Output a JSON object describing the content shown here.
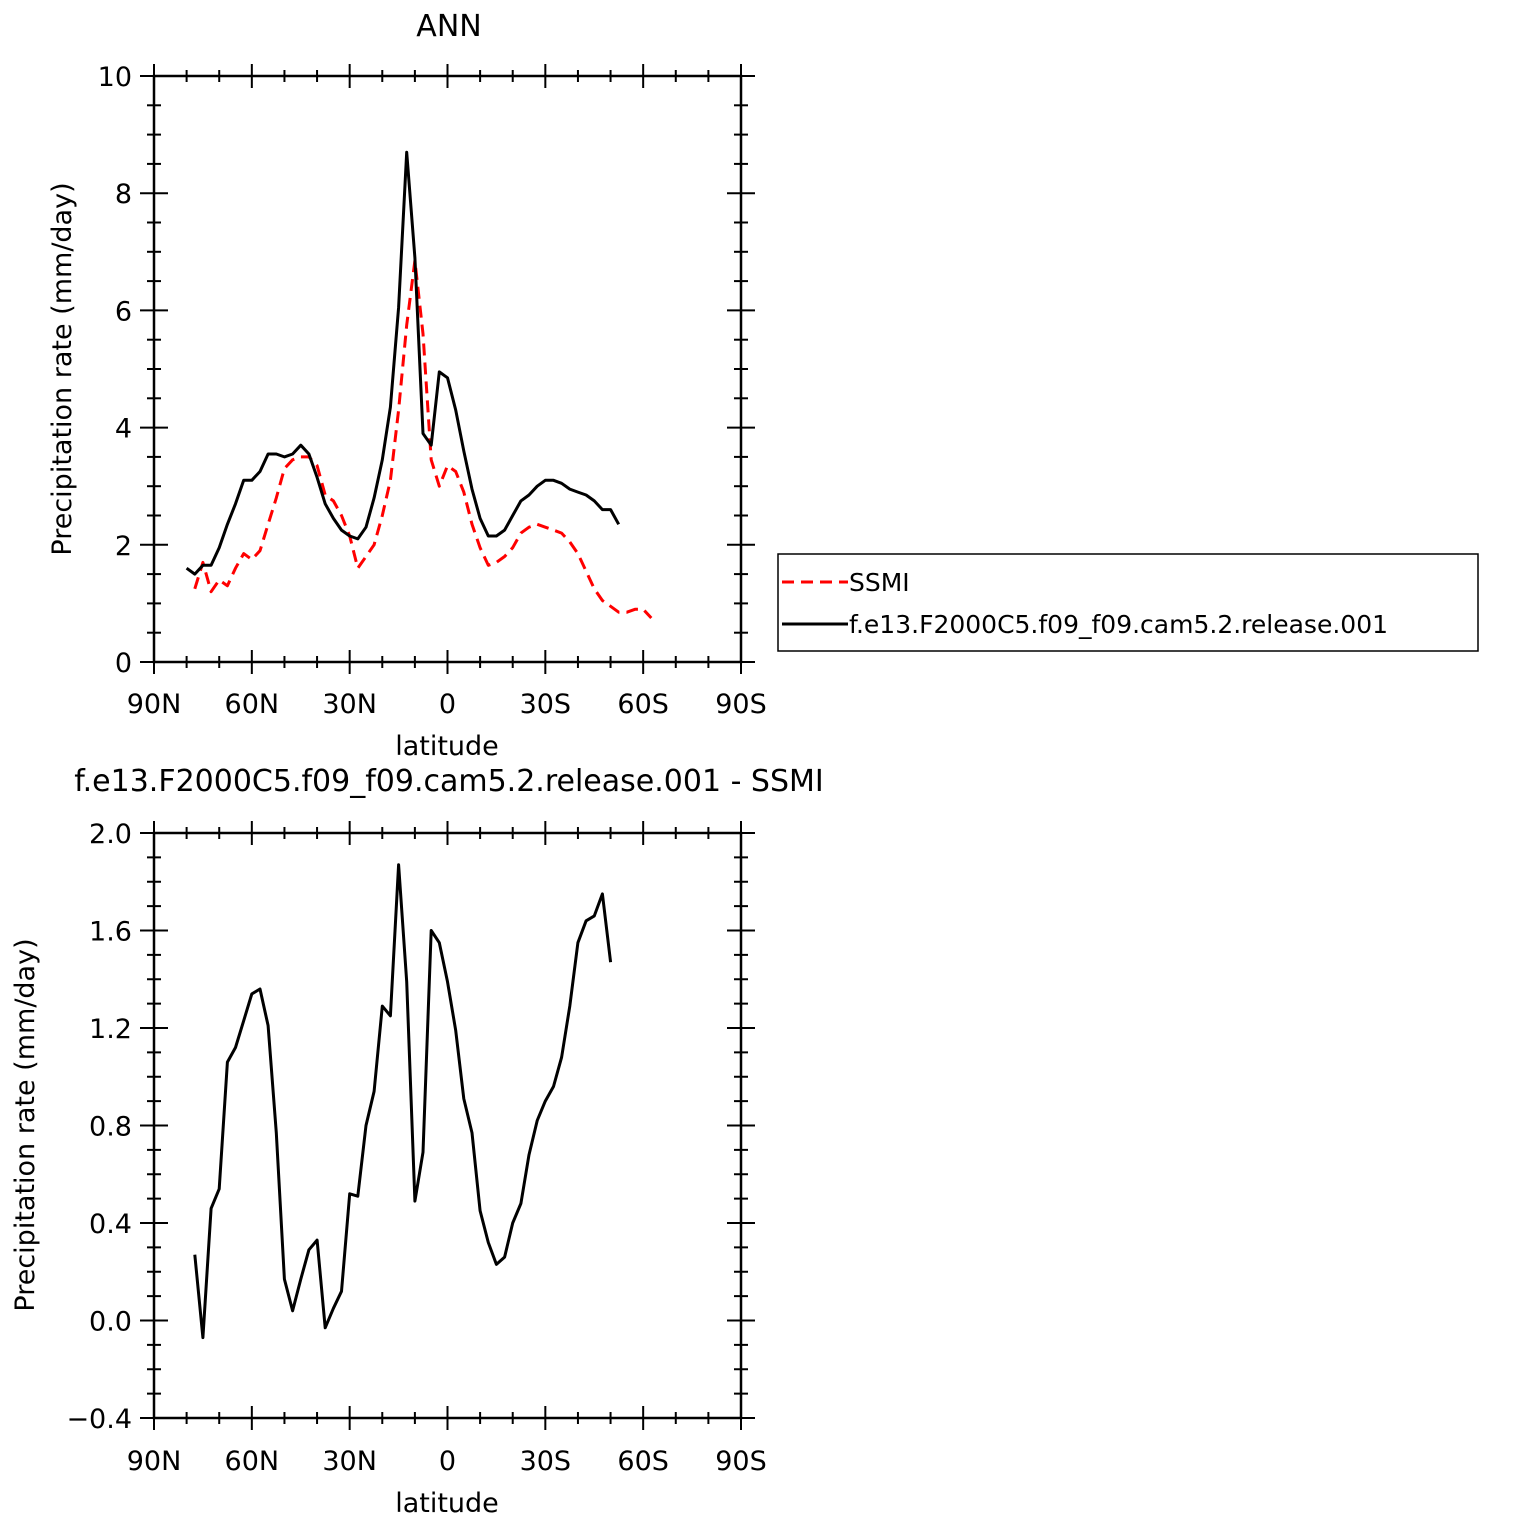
{
  "chart_data": [
    {
      "type": "line",
      "title": "ANN",
      "xlabel": "latitude",
      "ylabel": "Precipitation rate (mm/day)",
      "xlim": [
        "90N",
        "90S"
      ],
      "ylim": [
        0,
        10
      ],
      "x_tick_labels": [
        "90N",
        "60N",
        "30N",
        "0",
        "30S",
        "60S",
        "90S"
      ],
      "y_tick_labels": [
        "0",
        "2",
        "4",
        "6",
        "8",
        "10"
      ],
      "legend": {
        "placement": "right",
        "entries": [
          "SSMI",
          "f.e13.F2000C5.f09_f09.cam5.2.release.001"
        ]
      },
      "series": [
        {
          "name": "SSMI",
          "color": "#ff0000",
          "style": "dashed",
          "points": [
            [
              77.5,
              1.25
            ],
            [
              75,
              1.7
            ],
            [
              72.5,
              1.2
            ],
            [
              70,
              1.4
            ],
            [
              67.5,
              1.3
            ],
            [
              65,
              1.6
            ],
            [
              62.5,
              1.85
            ],
            [
              60,
              1.75
            ],
            [
              57.5,
              1.9
            ],
            [
              55,
              2.35
            ],
            [
              52.5,
              2.8
            ],
            [
              50,
              3.3
            ],
            [
              47.5,
              3.45
            ],
            [
              45,
              3.5
            ],
            [
              42.5,
              3.5
            ],
            [
              40,
              3.35
            ],
            [
              37.5,
              2.85
            ],
            [
              35,
              2.75
            ],
            [
              32.5,
              2.5
            ],
            [
              30,
              2.15
            ],
            [
              27.5,
              1.6
            ],
            [
              25,
              1.8
            ],
            [
              22.5,
              2.0
            ],
            [
              20,
              2.5
            ],
            [
              17.5,
              3.1
            ],
            [
              15,
              4.3
            ],
            [
              12.5,
              5.75
            ],
            [
              10,
              6.85
            ],
            [
              7.5,
              5.6
            ],
            [
              5,
              3.45
            ],
            [
              2.5,
              3.0
            ],
            [
              0,
              3.35
            ],
            [
              -2.5,
              3.25
            ],
            [
              -5,
              2.9
            ],
            [
              -7.5,
              2.35
            ],
            [
              -10,
              1.95
            ],
            [
              -12.5,
              1.65
            ],
            [
              -15,
              1.7
            ],
            [
              -17.5,
              1.8
            ],
            [
              -20,
              1.95
            ],
            [
              -22.5,
              2.2
            ],
            [
              -25,
              2.3
            ],
            [
              -27.5,
              2.35
            ],
            [
              -30,
              2.3
            ],
            [
              -32.5,
              2.25
            ],
            [
              -35,
              2.2
            ],
            [
              -37.5,
              2.05
            ],
            [
              -40,
              1.85
            ],
            [
              -42.5,
              1.55
            ],
            [
              -45,
              1.25
            ],
            [
              -47.5,
              1.05
            ],
            [
              -50,
              0.95
            ],
            [
              -52.5,
              0.85
            ],
            [
              -55,
              0.85
            ],
            [
              -57.5,
              0.9
            ],
            [
              -60,
              0.9
            ],
            [
              -62.5,
              0.75
            ]
          ]
        },
        {
          "name": "f.e13.F2000C5.f09_f09.cam5.2.release.001",
          "color": "#000000",
          "style": "solid",
          "points": [
            [
              80,
              1.6
            ],
            [
              77.5,
              1.5
            ],
            [
              75,
              1.65
            ],
            [
              72.5,
              1.65
            ],
            [
              70,
              1.95
            ],
            [
              67.5,
              2.35
            ],
            [
              65,
              2.7
            ],
            [
              62.5,
              3.1
            ],
            [
              60,
              3.1
            ],
            [
              57.5,
              3.25
            ],
            [
              55,
              3.55
            ],
            [
              52.5,
              3.55
            ],
            [
              50,
              3.5
            ],
            [
              47.5,
              3.55
            ],
            [
              45,
              3.7
            ],
            [
              42.5,
              3.55
            ],
            [
              40,
              3.15
            ],
            [
              37.5,
              2.7
            ],
            [
              35,
              2.45
            ],
            [
              32.5,
              2.25
            ],
            [
              30,
              2.15
            ],
            [
              27.5,
              2.1
            ],
            [
              25,
              2.3
            ],
            [
              22.5,
              2.8
            ],
            [
              20,
              3.45
            ],
            [
              17.5,
              4.35
            ],
            [
              15,
              6.05
            ],
            [
              12.5,
              8.7
            ],
            [
              10,
              6.9
            ],
            [
              7.5,
              3.9
            ],
            [
              5,
              3.7
            ],
            [
              2.5,
              4.95
            ],
            [
              0,
              4.85
            ],
            [
              -2.5,
              4.3
            ],
            [
              -5,
              3.6
            ],
            [
              -7.5,
              2.95
            ],
            [
              -10,
              2.45
            ],
            [
              -12.5,
              2.15
            ],
            [
              -15,
              2.15
            ],
            [
              -17.5,
              2.25
            ],
            [
              -20,
              2.5
            ],
            [
              -22.5,
              2.75
            ],
            [
              -25,
              2.85
            ],
            [
              -27.5,
              3.0
            ],
            [
              -30,
              3.1
            ],
            [
              -32.5,
              3.1
            ],
            [
              -35,
              3.05
            ],
            [
              -37.5,
              2.95
            ],
            [
              -40,
              2.9
            ],
            [
              -42.5,
              2.85
            ],
            [
              -45,
              2.75
            ],
            [
              -47.5,
              2.6
            ],
            [
              -50,
              2.6
            ],
            [
              -52.5,
              2.35
            ]
          ]
        }
      ]
    },
    {
      "type": "line",
      "title": "f.e13.F2000C5.f09_f09.cam5.2.release.001 - SSMI",
      "xlabel": "latitude",
      "ylabel": "Precipitation rate (mm/day)",
      "xlim": [
        "90N",
        "90S"
      ],
      "ylim": [
        -0.4,
        2.0
      ],
      "x_tick_labels": [
        "90N",
        "60N",
        "30N",
        "0",
        "30S",
        "60S",
        "90S"
      ],
      "y_tick_labels": [
        "−0.4",
        "0.0",
        "0.4",
        "0.8",
        "1.2",
        "1.6",
        "2.0"
      ],
      "series": [
        {
          "color": "#000000",
          "style": "solid",
          "points": [
            [
              77.5,
              0.27
            ],
            [
              75,
              -0.07
            ],
            [
              72.5,
              0.46
            ],
            [
              70,
              0.54
            ],
            [
              67.5,
              1.06
            ],
            [
              65,
              1.12
            ],
            [
              62.5,
              1.23
            ],
            [
              60,
              1.34
            ],
            [
              57.5,
              1.36
            ],
            [
              55,
              1.21
            ],
            [
              52.5,
              0.77
            ],
            [
              50,
              0.17
            ],
            [
              47.5,
              0.04
            ],
            [
              45,
              0.17
            ],
            [
              42.5,
              0.29
            ],
            [
              40,
              0.33
            ],
            [
              37.5,
              -0.03
            ],
            [
              35,
              0.05
            ],
            [
              32.5,
              0.12
            ],
            [
              30,
              0.52
            ],
            [
              27.5,
              0.51
            ],
            [
              25,
              0.8
            ],
            [
              22.5,
              0.94
            ],
            [
              20,
              1.29
            ],
            [
              17.5,
              1.25
            ],
            [
              15,
              1.87
            ],
            [
              12.5,
              1.39
            ],
            [
              10,
              0.49
            ],
            [
              7.5,
              0.69
            ],
            [
              5,
              1.6
            ],
            [
              2.5,
              1.55
            ],
            [
              0,
              1.39
            ],
            [
              -2.5,
              1.19
            ],
            [
              -5,
              0.91
            ],
            [
              -7.5,
              0.77
            ],
            [
              -10,
              0.45
            ],
            [
              -12.5,
              0.32
            ],
            [
              -15,
              0.23
            ],
            [
              -17.5,
              0.26
            ],
            [
              -20,
              0.4
            ],
            [
              -22.5,
              0.48
            ],
            [
              -25,
              0.68
            ],
            [
              -27.5,
              0.82
            ],
            [
              -30,
              0.9
            ],
            [
              -32.5,
              0.96
            ],
            [
              -35,
              1.08
            ],
            [
              -37.5,
              1.29
            ],
            [
              -40,
              1.55
            ],
            [
              -42.5,
              1.64
            ],
            [
              -45,
              1.66
            ],
            [
              -47.5,
              1.75
            ],
            [
              -50,
              1.47
            ]
          ]
        }
      ]
    }
  ]
}
